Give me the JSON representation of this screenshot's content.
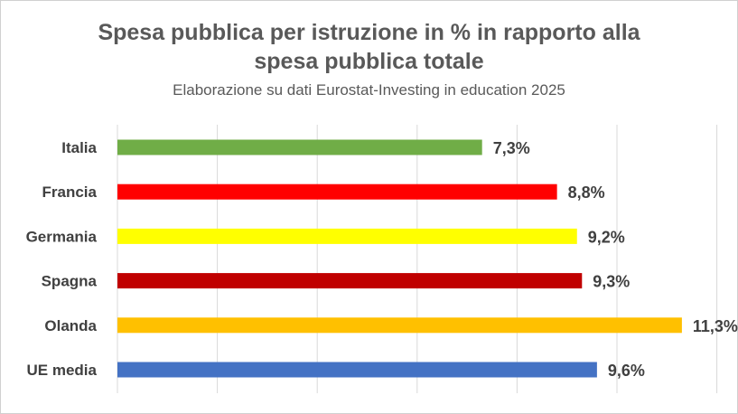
{
  "chart_data": {
    "type": "bar",
    "orientation": "horizontal",
    "title": "Spesa pubblica per istruzione in % in rapporto alla spesa pubblica totale",
    "title_lines": [
      "Spesa pubblica per istruzione in % in rapporto alla",
      "spesa pubblica totale"
    ],
    "subtitle": "Elaborazione su dati Eurostat-Investing in education 2025",
    "categories": [
      "Italia",
      "Francia",
      "Germania",
      "Spagna",
      "Olanda",
      "UE media"
    ],
    "values": [
      7.3,
      8.8,
      9.2,
      9.3,
      11.3,
      9.6
    ],
    "data_labels": [
      "7,3%",
      "8,8%",
      "9,2%",
      "9,3%",
      "11,3%",
      "9,6%"
    ],
    "colors": [
      "#70ad47",
      "#ff0000",
      "#ffff00",
      "#c00000",
      "#ffc000",
      "#4472c4"
    ],
    "xlim": [
      0,
      12
    ],
    "grid": true,
    "legend": "none"
  }
}
